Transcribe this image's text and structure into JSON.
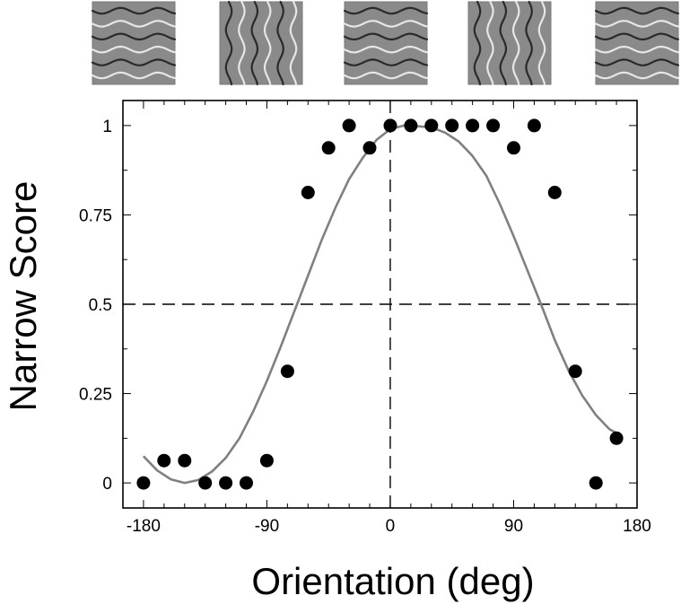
{
  "chart_data": {
    "type": "scatter",
    "xlabel": "Orientation (deg)",
    "ylabel": "Narrow Score",
    "xlim": [
      -195,
      180
    ],
    "ylim": [
      -0.07,
      1.07
    ],
    "xticks": [
      -180,
      -90,
      0,
      90,
      180
    ],
    "xtick_labels": [
      "-180",
      "-90",
      "0",
      "90",
      "180"
    ],
    "yticks": [
      0,
      0.25,
      0.5,
      0.75,
      1
    ],
    "ytick_labels": [
      "0",
      "0.25",
      "0.5",
      "0.75",
      "1"
    ],
    "reference_lines": {
      "x": 0,
      "y": 0.5,
      "style": "dashed"
    },
    "grid": false,
    "series": [
      {
        "kind": "points",
        "color": "#000000",
        "x": [
          -180,
          -165,
          -150,
          -135,
          -120,
          -105,
          -90,
          -75,
          -60,
          -45,
          -30,
          -15,
          0,
          15,
          30,
          45,
          60,
          75,
          90,
          105,
          120,
          135,
          150,
          165
        ],
        "y": [
          0,
          0.0625,
          0.0625,
          0,
          0,
          0,
          0.0625,
          0.3125,
          0.8125,
          0.9375,
          1,
          0.9375,
          1,
          1,
          1,
          1,
          1,
          1,
          0.9375,
          1,
          0.8125,
          0.3125,
          0,
          0.125
        ]
      },
      {
        "kind": "fit-curve",
        "color": "#808080",
        "x": [
          -180,
          -170,
          -160,
          -150,
          -140,
          -130,
          -120,
          -110,
          -100,
          -90,
          -80,
          -70,
          -60,
          -50,
          -40,
          -30,
          -20,
          -10,
          0,
          10,
          20,
          30,
          40,
          50,
          60,
          70,
          80,
          90,
          100,
          110,
          120,
          130,
          140,
          150,
          160,
          165
        ],
        "y": [
          0.075,
          0.035,
          0.01,
          0.0,
          0.008,
          0.032,
          0.07,
          0.125,
          0.2,
          0.285,
          0.38,
          0.48,
          0.58,
          0.68,
          0.77,
          0.85,
          0.91,
          0.96,
          0.99,
          1.0,
          0.998,
          0.995,
          0.98,
          0.955,
          0.915,
          0.86,
          0.78,
          0.69,
          0.595,
          0.5,
          0.4,
          0.315,
          0.245,
          0.19,
          0.15,
          0.14
        ]
      }
    ]
  },
  "stimuli": [
    {
      "orientation": "horizontal"
    },
    {
      "orientation": "vertical"
    },
    {
      "orientation": "horizontal"
    },
    {
      "orientation": "vertical"
    },
    {
      "orientation": "horizontal"
    }
  ]
}
